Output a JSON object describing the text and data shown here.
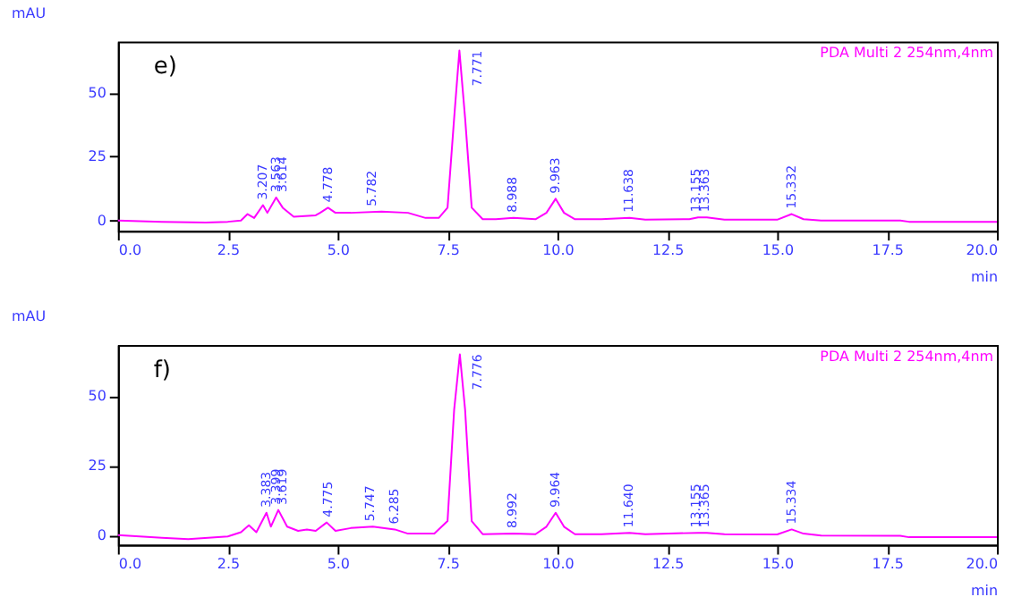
{
  "chart_data": [
    {
      "type": "line",
      "xlabel": "min",
      "ylabel": "mAU",
      "annotations": [
        "e)",
        {
          "text": "3.207",
          "x": 3.3,
          "y": 6
        },
        {
          "text": "3.563",
          "x": 3.6,
          "y": 9
        },
        {
          "text": "3.614",
          "x": 3.75,
          "y": 9
        },
        {
          "text": "4.778",
          "x": 4.78,
          "y": 5
        },
        {
          "text": "5.782",
          "x": 5.78,
          "y": 3.5
        },
        {
          "text": "7.771",
          "x": 7.9,
          "y": 66.5
        },
        {
          "text": "8.988",
          "x": 8.99,
          "y": 1
        },
        {
          "text": "9.963",
          "x": 9.96,
          "y": 8.5
        },
        {
          "text": "11.638",
          "x": 11.64,
          "y": 1
        },
        {
          "text": "13.155",
          "x": 13.16,
          "y": 1.2
        },
        {
          "text": "13.363",
          "x": 13.36,
          "y": 1.2
        },
        {
          "text": "15.332",
          "x": 15.33,
          "y": 2.5
        }
      ],
      "series": [
        {
          "name": "PDA Multi 2 254nm,4nm",
          "color": "#ff00ff",
          "x": [
            0,
            1,
            2,
            2.5,
            2.8,
            2.95,
            3.1,
            3.3,
            3.4,
            3.6,
            3.75,
            4.0,
            4.5,
            4.6,
            4.78,
            4.95,
            5.3,
            6.0,
            6.6,
            7.0,
            7.3,
            7.5,
            7.65,
            7.77,
            7.9,
            8.05,
            8.3,
            8.6,
            9.0,
            9.5,
            9.75,
            9.96,
            10.15,
            10.4,
            11.0,
            11.64,
            12,
            13.0,
            13.2,
            13.4,
            13.8,
            15.0,
            15.33,
            15.6,
            16,
            17.8,
            18,
            20
          ],
          "values": [
            0,
            -0.5,
            -0.8,
            -0.5,
            0,
            2.5,
            1,
            6,
            3,
            9,
            5,
            1.5,
            2,
            3,
            5,
            3,
            3,
            3.5,
            3,
            1,
            1,
            5,
            40,
            66.5,
            40,
            5,
            0.5,
            0.5,
            1,
            0.5,
            3,
            8.5,
            3,
            0.5,
            0.5,
            1,
            0.3,
            0.5,
            1.2,
            1.2,
            0.3,
            0.3,
            2.5,
            0.5,
            0,
            0,
            -0.5,
            -0.5
          ]
        }
      ],
      "xlim": [
        0,
        20
      ],
      "xticks": [
        {
          "value": 0,
          "label": "0.0"
        },
        {
          "value": 2.5,
          "label": "2.5"
        },
        {
          "value": 5,
          "label": "5.0"
        },
        {
          "value": 7.5,
          "label": "7.5"
        },
        {
          "value": 10,
          "label": "10.0"
        },
        {
          "value": 12.5,
          "label": "12.5"
        },
        {
          "value": 15,
          "label": "15.0"
        },
        {
          "value": 17.5,
          "label": "17.5"
        },
        {
          "value": 20,
          "label": "20.0"
        }
      ],
      "ylim": [
        -4,
        70
      ],
      "yticks": [
        0,
        25,
        50
      ],
      "grid": false
    },
    {
      "type": "line",
      "xlabel": "min",
      "ylabel": "mAU",
      "annotations": [
        "f)",
        {
          "text": "3.383",
          "x": 3.38,
          "y": 8
        },
        {
          "text": "3.399",
          "x": 3.6,
          "y": 9
        },
        {
          "text": "3.619",
          "x": 3.75,
          "y": 9
        },
        {
          "text": "4.775",
          "x": 4.78,
          "y": 4.5
        },
        {
          "text": "5.747",
          "x": 5.75,
          "y": 3
        },
        {
          "text": "6.285",
          "x": 6.29,
          "y": 2
        },
        {
          "text": "7.776",
          "x": 7.9,
          "y": 65
        },
        {
          "text": "8.992",
          "x": 8.99,
          "y": 0.5
        },
        {
          "text": "9.964",
          "x": 9.96,
          "y": 8
        },
        {
          "text": "11.640",
          "x": 11.64,
          "y": 0.8
        },
        {
          "text": "13.155",
          "x": 13.16,
          "y": 0.8
        },
        {
          "text": "13.365",
          "x": 13.37,
          "y": 0.8
        },
        {
          "text": "15.334",
          "x": 15.33,
          "y": 2
        }
      ],
      "series": [
        {
          "name": "PDA Multi 2 254nm,4nm",
          "color": "#ff00ff",
          "x": [
            0,
            1,
            1.6,
            2.5,
            2.8,
            2.98,
            3.15,
            3.38,
            3.48,
            3.65,
            3.85,
            4.1,
            4.3,
            4.5,
            4.75,
            4.95,
            5.3,
            5.8,
            6.3,
            6.6,
            7.2,
            7.5,
            7.65,
            7.78,
            7.9,
            8.05,
            8.3,
            9.0,
            9.5,
            9.75,
            9.96,
            10.15,
            10.4,
            11.0,
            11.64,
            12,
            13.2,
            13.4,
            13.8,
            15.0,
            15.33,
            15.6,
            16,
            17.8,
            18.0,
            20
          ],
          "values": [
            0,
            -1,
            -1.5,
            -0.5,
            1,
            3.5,
            1,
            8,
            3,
            9,
            3,
            1.5,
            2,
            1.5,
            4.5,
            1.5,
            2.5,
            3,
            2,
            0.5,
            0.5,
            5,
            45,
            65,
            45,
            5,
            0.3,
            0.5,
            0.3,
            3,
            8,
            3,
            0.3,
            0.3,
            0.8,
            0.3,
            0.8,
            0.8,
            0.3,
            0.2,
            2,
            0.5,
            -0.2,
            -0.3,
            -0.8,
            -0.8
          ]
        }
      ],
      "xlim": [
        0,
        20
      ],
      "xticks": [
        {
          "value": 0,
          "label": "0.0"
        },
        {
          "value": 2.5,
          "label": "2.5"
        },
        {
          "value": 5,
          "label": "5.0"
        },
        {
          "value": 7.5,
          "label": "7.5"
        },
        {
          "value": 10,
          "label": "10.0"
        },
        {
          "value": 12.5,
          "label": "12.5"
        },
        {
          "value": 15,
          "label": "15.0"
        },
        {
          "value": 17.5,
          "label": "17.5"
        },
        {
          "value": 20,
          "label": "20.0"
        }
      ],
      "ylim": [
        -3.5,
        68.4
      ],
      "yticks": [
        0,
        25,
        50
      ],
      "grid": false
    }
  ]
}
